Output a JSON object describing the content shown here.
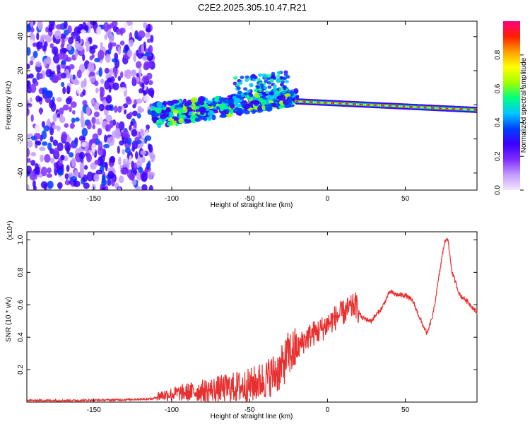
{
  "title": "C2E2.2025.305.10.47.R21",
  "colors": {
    "snr_line": "#e83030",
    "dense_tail_color": "#cc2020",
    "colormap": [
      "#f3e8ff",
      "#c39bff",
      "#7d2dff",
      "#3b00ff",
      "#0040ff",
      "#00c8ff",
      "#00ff80",
      "#a0ff00",
      "#ffff00",
      "#ffa000",
      "#ff2000",
      "#ff007f"
    ]
  },
  "chart_data": [
    {
      "type": "heatmap",
      "name": "spectrogram",
      "xlabel": "Height of straight line (km)",
      "ylabel": "Frequency (Hz)",
      "xlim": [
        -193,
        96
      ],
      "ylim": [
        -50,
        49
      ],
      "xticks": [
        -150,
        -100,
        -50,
        0,
        50
      ],
      "yticks": [
        -40,
        -20,
        0,
        20,
        40
      ],
      "colorbar": {
        "label": "Normalized spectral amplitude",
        "range": [
          0,
          1
        ],
        "ticks": [
          "0.0",
          "0.2",
          "0.4",
          "0.6",
          "0.8"
        ]
      },
      "regions": [
        {
          "x_range": [
            -193,
            -112
          ],
          "freq_range": [
            -50,
            49
          ],
          "amplitude": 0.12,
          "description_level": "noise"
        },
        {
          "x_range": [
            -112,
            -20
          ],
          "freq_center_start": -6,
          "freq_center_end": 4,
          "amplitude": 0.45
        },
        {
          "x_range": [
            -20,
            96
          ],
          "freq_center_start": 2,
          "freq_center_end": -3,
          "amplitude": 0.95
        }
      ]
    },
    {
      "type": "line",
      "name": "snr",
      "xlabel": "Height of straight line (km)",
      "ylabel": "SNR (10 * v/v)",
      "y_multiplier": "(x10⁴)",
      "xlim": [
        -193,
        96
      ],
      "ylim": [
        0,
        1.05
      ],
      "xticks": [
        -150,
        -100,
        -50,
        0,
        50
      ],
      "yticks": [
        0.2,
        0.4,
        0.6,
        0.8,
        1.0
      ],
      "series": [
        {
          "x": [
            -193,
            -160,
            -130,
            -112,
            -108,
            -100,
            -90,
            -80,
            -70,
            -60,
            -50,
            -40,
            -30,
            -25,
            -20,
            -15,
            -10,
            -5,
            0,
            5,
            10,
            15,
            18,
            22,
            28,
            35,
            40,
            45,
            50,
            55,
            60,
            64,
            68,
            72,
            75,
            77,
            80,
            85,
            90,
            96
          ],
          "y": [
            0.01,
            0.01,
            0.015,
            0.02,
            0.04,
            0.05,
            0.06,
            0.07,
            0.08,
            0.09,
            0.1,
            0.14,
            0.2,
            0.3,
            0.32,
            0.38,
            0.42,
            0.44,
            0.48,
            0.52,
            0.55,
            0.58,
            0.6,
            0.52,
            0.5,
            0.58,
            0.68,
            0.66,
            0.66,
            0.62,
            0.5,
            0.42,
            0.55,
            0.8,
            0.98,
            1.02,
            0.8,
            0.66,
            0.62,
            0.55
          ]
        }
      ]
    }
  ]
}
